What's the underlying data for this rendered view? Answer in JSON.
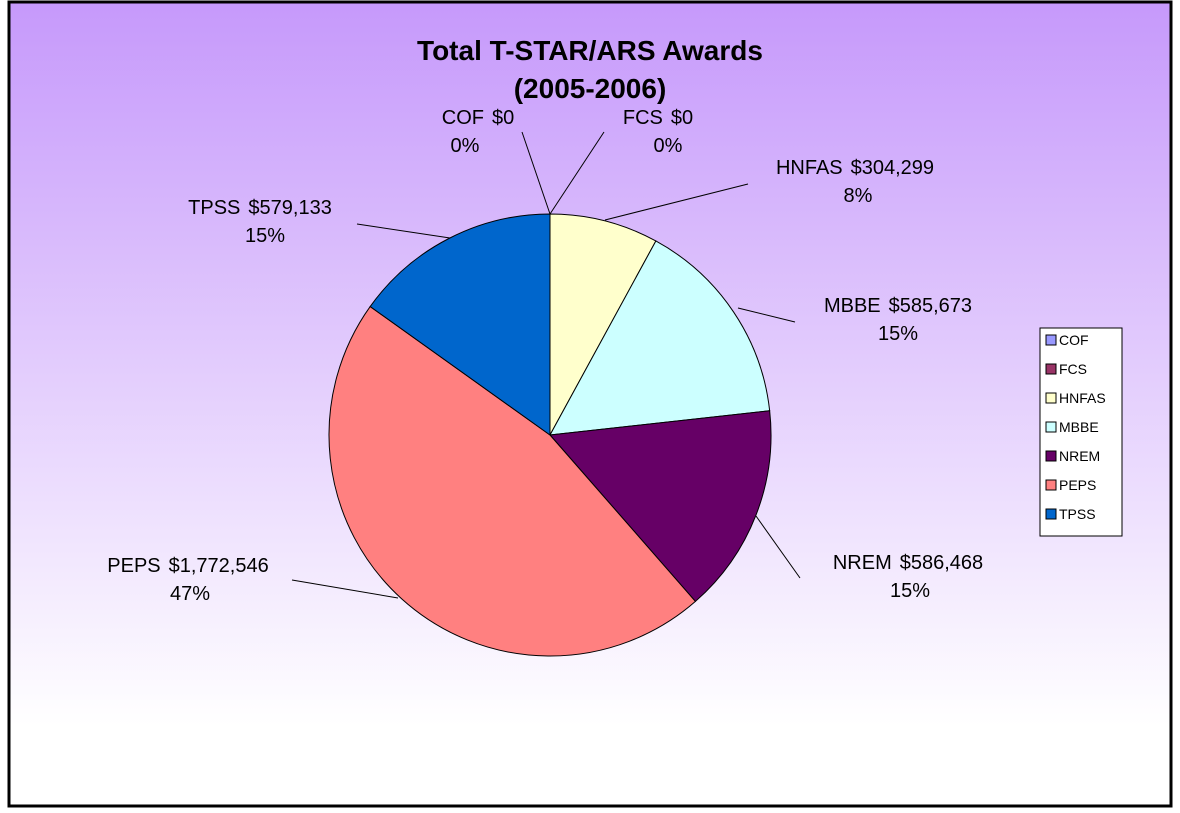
{
  "chart_data": {
    "type": "pie",
    "title": [
      "Total T-STAR/ARS Awards",
      "(2005-2006)"
    ],
    "categories": [
      "COF",
      "FCS",
      "HNFAS",
      "MBBE",
      "NREM",
      "PEPS",
      "TPSS"
    ],
    "values": [
      0,
      0,
      304299,
      585673,
      586468,
      1772546,
      579133
    ],
    "value_labels": [
      "$0",
      "$0",
      "$304,299",
      "$585,673",
      "$586,468",
      "$1,772,546",
      "$579,133"
    ],
    "percent_labels": [
      "0%",
      "0%",
      "8%",
      "15%",
      "15%",
      "47%",
      "15%"
    ],
    "colors": [
      "#9999ff",
      "#993366",
      "#ffffcc",
      "#ccffff",
      "#660066",
      "#ff8080",
      "#0066cc"
    ],
    "legend": "right"
  }
}
